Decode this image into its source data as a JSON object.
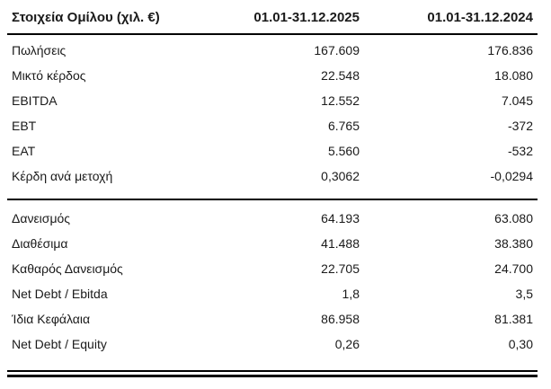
{
  "table": {
    "header": {
      "label": "Στοιχεία Ομίλου (χιλ. €)",
      "col_2025": "01.01-31.12.2025",
      "col_2024": "01.01-31.12.2024"
    },
    "sections": [
      {
        "rows": [
          {
            "label": "Πωλήσεις",
            "v2025": "167.609",
            "v2024": "176.836"
          },
          {
            "label": "Μικτό κέρδος",
            "v2025": "22.548",
            "v2024": "18.080"
          },
          {
            "label": "EBITDA",
            "v2025": "12.552",
            "v2024": "7.045"
          },
          {
            "label": "EBT",
            "v2025": "6.765",
            "v2024": "-372"
          },
          {
            "label": "EAT",
            "v2025": "5.560",
            "v2024": "-532"
          },
          {
            "label": "Κέρδη ανά μετοχή",
            "v2025": "0,3062",
            "v2024": "-0,0294"
          }
        ]
      },
      {
        "rows": [
          {
            "label": "Δανεισμός",
            "v2025": "64.193",
            "v2024": "63.080"
          },
          {
            "label": "Διαθέσιμα",
            "v2025": "41.488",
            "v2024": "38.380"
          },
          {
            "label": "Καθαρός Δανεισμός",
            "v2025": "22.705",
            "v2024": "24.700"
          },
          {
            "label": "Net Debt / Ebitda",
            "v2025": "1,8",
            "v2024": "3,5"
          },
          {
            "label": "Ίδια Κεφάλαια",
            "v2025": "86.958",
            "v2024": "81.381"
          },
          {
            "label": "Net Debt / Equity",
            "v2025": "0,26",
            "v2024": "0,30"
          }
        ]
      }
    ],
    "colors": {
      "text": "#1a1a1a",
      "line": "#000000",
      "background": "#ffffff"
    }
  }
}
